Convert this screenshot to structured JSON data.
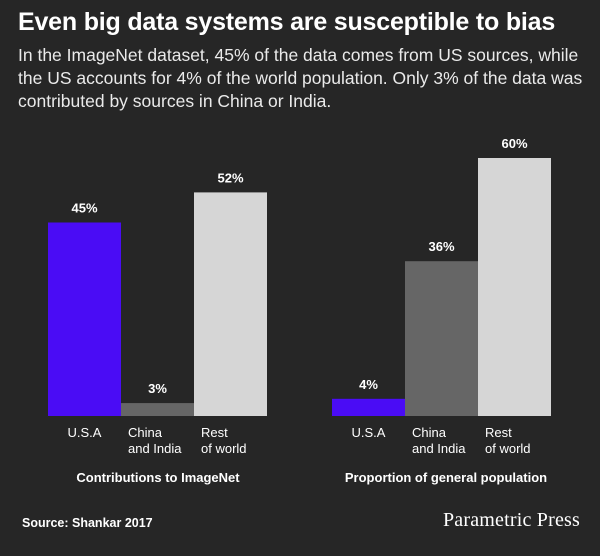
{
  "title": "Even big data systems are susceptible to bias",
  "subtitle": "In the ImageNet dataset, 45% of the data comes from US sources, while the US accounts for 4% of the world population. Only 3% of the data was contributed by sources in China or India.",
  "source": "Source: Shankar 2017",
  "brand": "Parametric Press",
  "colors": {
    "background": "#262626",
    "usa": "#4a0cf5",
    "china_india": "#666666",
    "rest": "#d6d6d6"
  },
  "chart_data": [
    {
      "type": "bar",
      "title": "Contributions to ImageNet",
      "categories": [
        [
          "U.S.A"
        ],
        [
          "China",
          "and India"
        ],
        [
          "Rest",
          "of world"
        ]
      ],
      "values": [
        45,
        3,
        52
      ],
      "value_labels": [
        "45%",
        "3%",
        "52%"
      ],
      "ylim": [
        0,
        60
      ]
    },
    {
      "type": "bar",
      "title": "Proportion of general population",
      "categories": [
        [
          "U.S.A"
        ],
        [
          "China",
          "and India"
        ],
        [
          "Rest",
          "of world"
        ]
      ],
      "values": [
        4,
        36,
        60
      ],
      "value_labels": [
        "4%",
        "36%",
        "60%"
      ],
      "ylim": [
        0,
        60
      ]
    }
  ]
}
